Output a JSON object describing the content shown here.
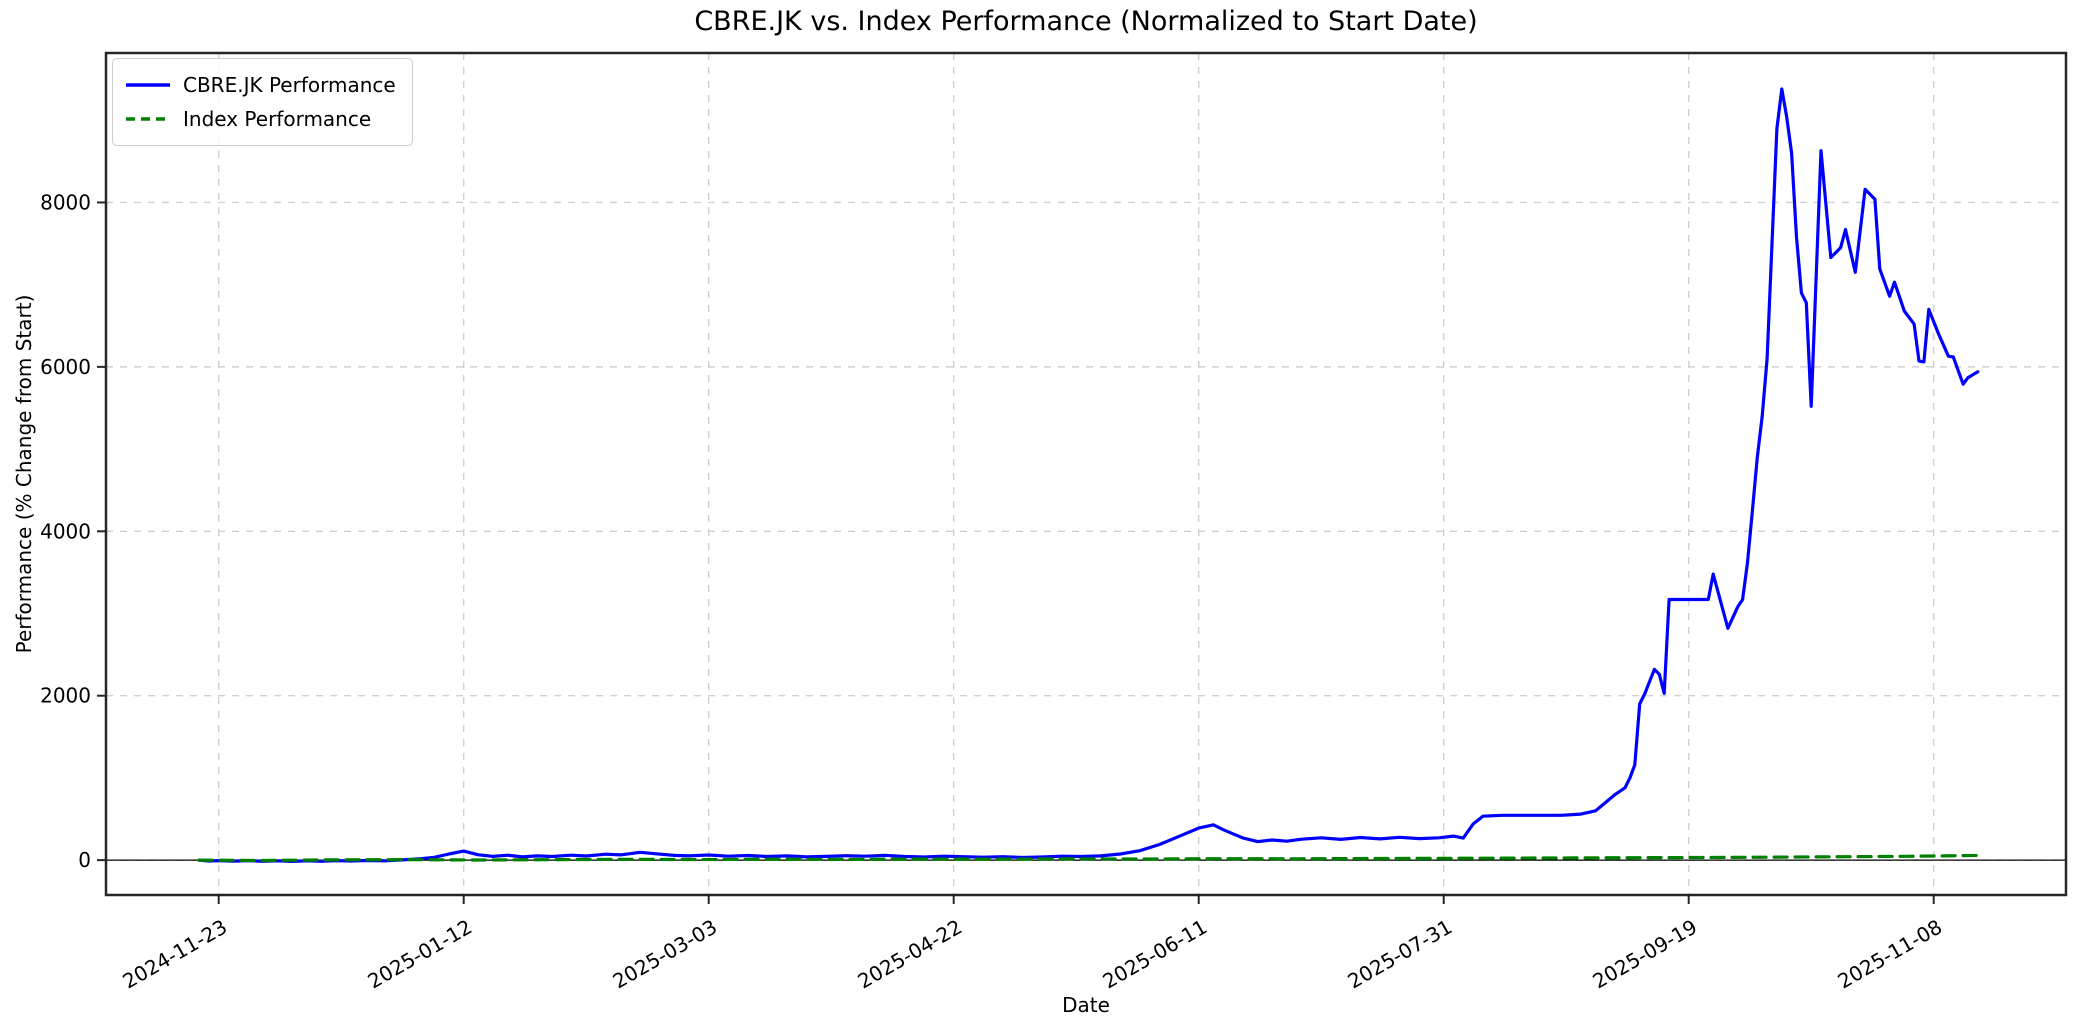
{
  "chart_data": {
    "type": "line",
    "title": "CBRE.JK vs. Index Performance (Normalized to Start Date)",
    "xlabel": "Date",
    "ylabel": "Performance (% Change from Start)",
    "xlim": [
      "2024-10-31",
      "2025-12-05"
    ],
    "ylim": [
      -424,
      9818
    ],
    "x_ticks": [
      "2024-11-23",
      "2025-01-12",
      "2025-03-03",
      "2025-04-22",
      "2025-06-11",
      "2025-07-31",
      "2025-09-19",
      "2025-11-08"
    ],
    "y_ticks": [
      0,
      2000,
      4000,
      6000,
      8000
    ],
    "grid": true,
    "zero_line": true,
    "legend_position": "upper-left",
    "colors": {
      "grid": "#d0d0d0",
      "spine": "#262626",
      "zero_line": "#000000",
      "text": "#000000"
    },
    "series": [
      {
        "name": "CBRE.JK Performance",
        "color": "#0000ff",
        "style": "solid",
        "points": [
          [
            "2024-11-19",
            0
          ],
          [
            "2024-11-21",
            -10
          ],
          [
            "2024-11-23",
            -5
          ],
          [
            "2024-11-26",
            -12
          ],
          [
            "2024-11-29",
            -6
          ],
          [
            "2024-12-02",
            -14
          ],
          [
            "2024-12-05",
            -8
          ],
          [
            "2024-12-08",
            -15
          ],
          [
            "2024-12-11",
            -8
          ],
          [
            "2024-12-14",
            -14
          ],
          [
            "2024-12-17",
            -6
          ],
          [
            "2024-12-20",
            -10
          ],
          [
            "2024-12-23",
            -4
          ],
          [
            "2024-12-27",
            -8
          ],
          [
            "2024-12-30",
            2
          ],
          [
            "2025-01-03",
            15
          ],
          [
            "2025-01-06",
            35
          ],
          [
            "2025-01-09",
            75
          ],
          [
            "2025-01-12",
            110
          ],
          [
            "2025-01-15",
            65
          ],
          [
            "2025-01-18",
            45
          ],
          [
            "2025-01-21",
            60
          ],
          [
            "2025-01-24",
            40
          ],
          [
            "2025-01-27",
            52
          ],
          [
            "2025-01-30",
            44
          ],
          [
            "2025-02-03",
            60
          ],
          [
            "2025-02-06",
            50
          ],
          [
            "2025-02-10",
            72
          ],
          [
            "2025-02-13",
            64
          ],
          [
            "2025-02-17",
            95
          ],
          [
            "2025-02-20",
            78
          ],
          [
            "2025-02-24",
            58
          ],
          [
            "2025-02-27",
            52
          ],
          [
            "2025-03-03",
            62
          ],
          [
            "2025-03-07",
            48
          ],
          [
            "2025-03-11",
            56
          ],
          [
            "2025-03-15",
            44
          ],
          [
            "2025-03-19",
            52
          ],
          [
            "2025-03-23",
            40
          ],
          [
            "2025-03-27",
            46
          ],
          [
            "2025-03-31",
            54
          ],
          [
            "2025-04-04",
            48
          ],
          [
            "2025-04-08",
            58
          ],
          [
            "2025-04-12",
            44
          ],
          [
            "2025-04-16",
            38
          ],
          [
            "2025-04-20",
            48
          ],
          [
            "2025-04-24",
            42
          ],
          [
            "2025-04-28",
            36
          ],
          [
            "2025-05-02",
            42
          ],
          [
            "2025-05-06",
            32
          ],
          [
            "2025-05-10",
            38
          ],
          [
            "2025-05-14",
            48
          ],
          [
            "2025-05-18",
            44
          ],
          [
            "2025-05-22",
            52
          ],
          [
            "2025-05-26",
            75
          ],
          [
            "2025-05-30",
            115
          ],
          [
            "2025-06-03",
            190
          ],
          [
            "2025-06-07",
            290
          ],
          [
            "2025-06-11",
            390
          ],
          [
            "2025-06-14",
            430
          ],
          [
            "2025-06-16",
            370
          ],
          [
            "2025-06-18",
            320
          ],
          [
            "2025-06-20",
            270
          ],
          [
            "2025-06-23",
            225
          ],
          [
            "2025-06-26",
            245
          ],
          [
            "2025-06-29",
            230
          ],
          [
            "2025-07-02",
            255
          ],
          [
            "2025-07-06",
            272
          ],
          [
            "2025-07-10",
            252
          ],
          [
            "2025-07-14",
            275
          ],
          [
            "2025-07-18",
            258
          ],
          [
            "2025-07-22",
            278
          ],
          [
            "2025-07-26",
            262
          ],
          [
            "2025-07-30",
            272
          ],
          [
            "2025-08-02",
            292
          ],
          [
            "2025-08-04",
            268
          ],
          [
            "2025-08-06",
            440
          ],
          [
            "2025-08-08",
            535
          ],
          [
            "2025-08-12",
            545
          ],
          [
            "2025-08-16",
            545
          ],
          [
            "2025-08-20",
            545
          ],
          [
            "2025-08-24",
            545
          ],
          [
            "2025-08-28",
            560
          ],
          [
            "2025-08-31",
            600
          ],
          [
            "2025-09-02",
            700
          ],
          [
            "2025-09-04",
            800
          ],
          [
            "2025-09-06",
            880
          ],
          [
            "2025-09-07",
            1000
          ],
          [
            "2025-09-08",
            1160
          ],
          [
            "2025-09-09",
            1900
          ],
          [
            "2025-09-10",
            2020
          ],
          [
            "2025-09-12",
            2320
          ],
          [
            "2025-09-13",
            2260
          ],
          [
            "2025-09-14",
            2030
          ],
          [
            "2025-09-15",
            3170
          ],
          [
            "2025-09-17",
            3170
          ],
          [
            "2025-09-19",
            3170
          ],
          [
            "2025-09-21",
            3170
          ],
          [
            "2025-09-23",
            3170
          ],
          [
            "2025-09-24",
            3480
          ],
          [
            "2025-09-26",
            3040
          ],
          [
            "2025-09-27",
            2820
          ],
          [
            "2025-09-29",
            3080
          ],
          [
            "2025-09-30",
            3170
          ],
          [
            "2025-10-01",
            3620
          ],
          [
            "2025-10-02",
            4250
          ],
          [
            "2025-10-03",
            4900
          ],
          [
            "2025-10-04",
            5400
          ],
          [
            "2025-10-05",
            6100
          ],
          [
            "2025-10-06",
            7500
          ],
          [
            "2025-10-07",
            8900
          ],
          [
            "2025-10-08",
            9380
          ],
          [
            "2025-10-09",
            9040
          ],
          [
            "2025-10-10",
            8600
          ],
          [
            "2025-10-11",
            7580
          ],
          [
            "2025-10-12",
            6900
          ],
          [
            "2025-10-13",
            6780
          ],
          [
            "2025-10-14",
            5520
          ],
          [
            "2025-10-16",
            8630
          ],
          [
            "2025-10-18",
            7330
          ],
          [
            "2025-10-20",
            7450
          ],
          [
            "2025-10-21",
            7670
          ],
          [
            "2025-10-23",
            7150
          ],
          [
            "2025-10-25",
            8160
          ],
          [
            "2025-10-27",
            8040
          ],
          [
            "2025-10-28",
            7190
          ],
          [
            "2025-10-30",
            6860
          ],
          [
            "2025-10-31",
            7030
          ],
          [
            "2025-11-02",
            6680
          ],
          [
            "2025-11-04",
            6520
          ],
          [
            "2025-11-05",
            6070
          ],
          [
            "2025-11-06",
            6060
          ],
          [
            "2025-11-07",
            6700
          ],
          [
            "2025-11-09",
            6400
          ],
          [
            "2025-11-11",
            6130
          ],
          [
            "2025-11-12",
            6120
          ],
          [
            "2025-11-14",
            5790
          ],
          [
            "2025-11-15",
            5870
          ],
          [
            "2025-11-17",
            5940
          ]
        ]
      },
      {
        "name": "Index Performance",
        "color": "#008000",
        "style": "dashed",
        "points": [
          [
            "2024-11-19",
            0
          ],
          [
            "2024-12-01",
            -4
          ],
          [
            "2024-12-15",
            3
          ],
          [
            "2025-01-01",
            7
          ],
          [
            "2025-01-15",
            2
          ],
          [
            "2025-02-01",
            6
          ],
          [
            "2025-02-15",
            10
          ],
          [
            "2025-03-01",
            7
          ],
          [
            "2025-03-15",
            12
          ],
          [
            "2025-04-01",
            9
          ],
          [
            "2025-04-15",
            13
          ],
          [
            "2025-05-01",
            11
          ],
          [
            "2025-05-15",
            15
          ],
          [
            "2025-06-01",
            14
          ],
          [
            "2025-06-15",
            18
          ],
          [
            "2025-07-01",
            16
          ],
          [
            "2025-07-15",
            20
          ],
          [
            "2025-08-01",
            22
          ],
          [
            "2025-08-15",
            25
          ],
          [
            "2025-09-01",
            28
          ],
          [
            "2025-09-15",
            31
          ],
          [
            "2025-10-01",
            35
          ],
          [
            "2025-10-15",
            40
          ],
          [
            "2025-11-01",
            46
          ],
          [
            "2025-11-10",
            52
          ],
          [
            "2025-11-17",
            58
          ]
        ]
      }
    ]
  }
}
